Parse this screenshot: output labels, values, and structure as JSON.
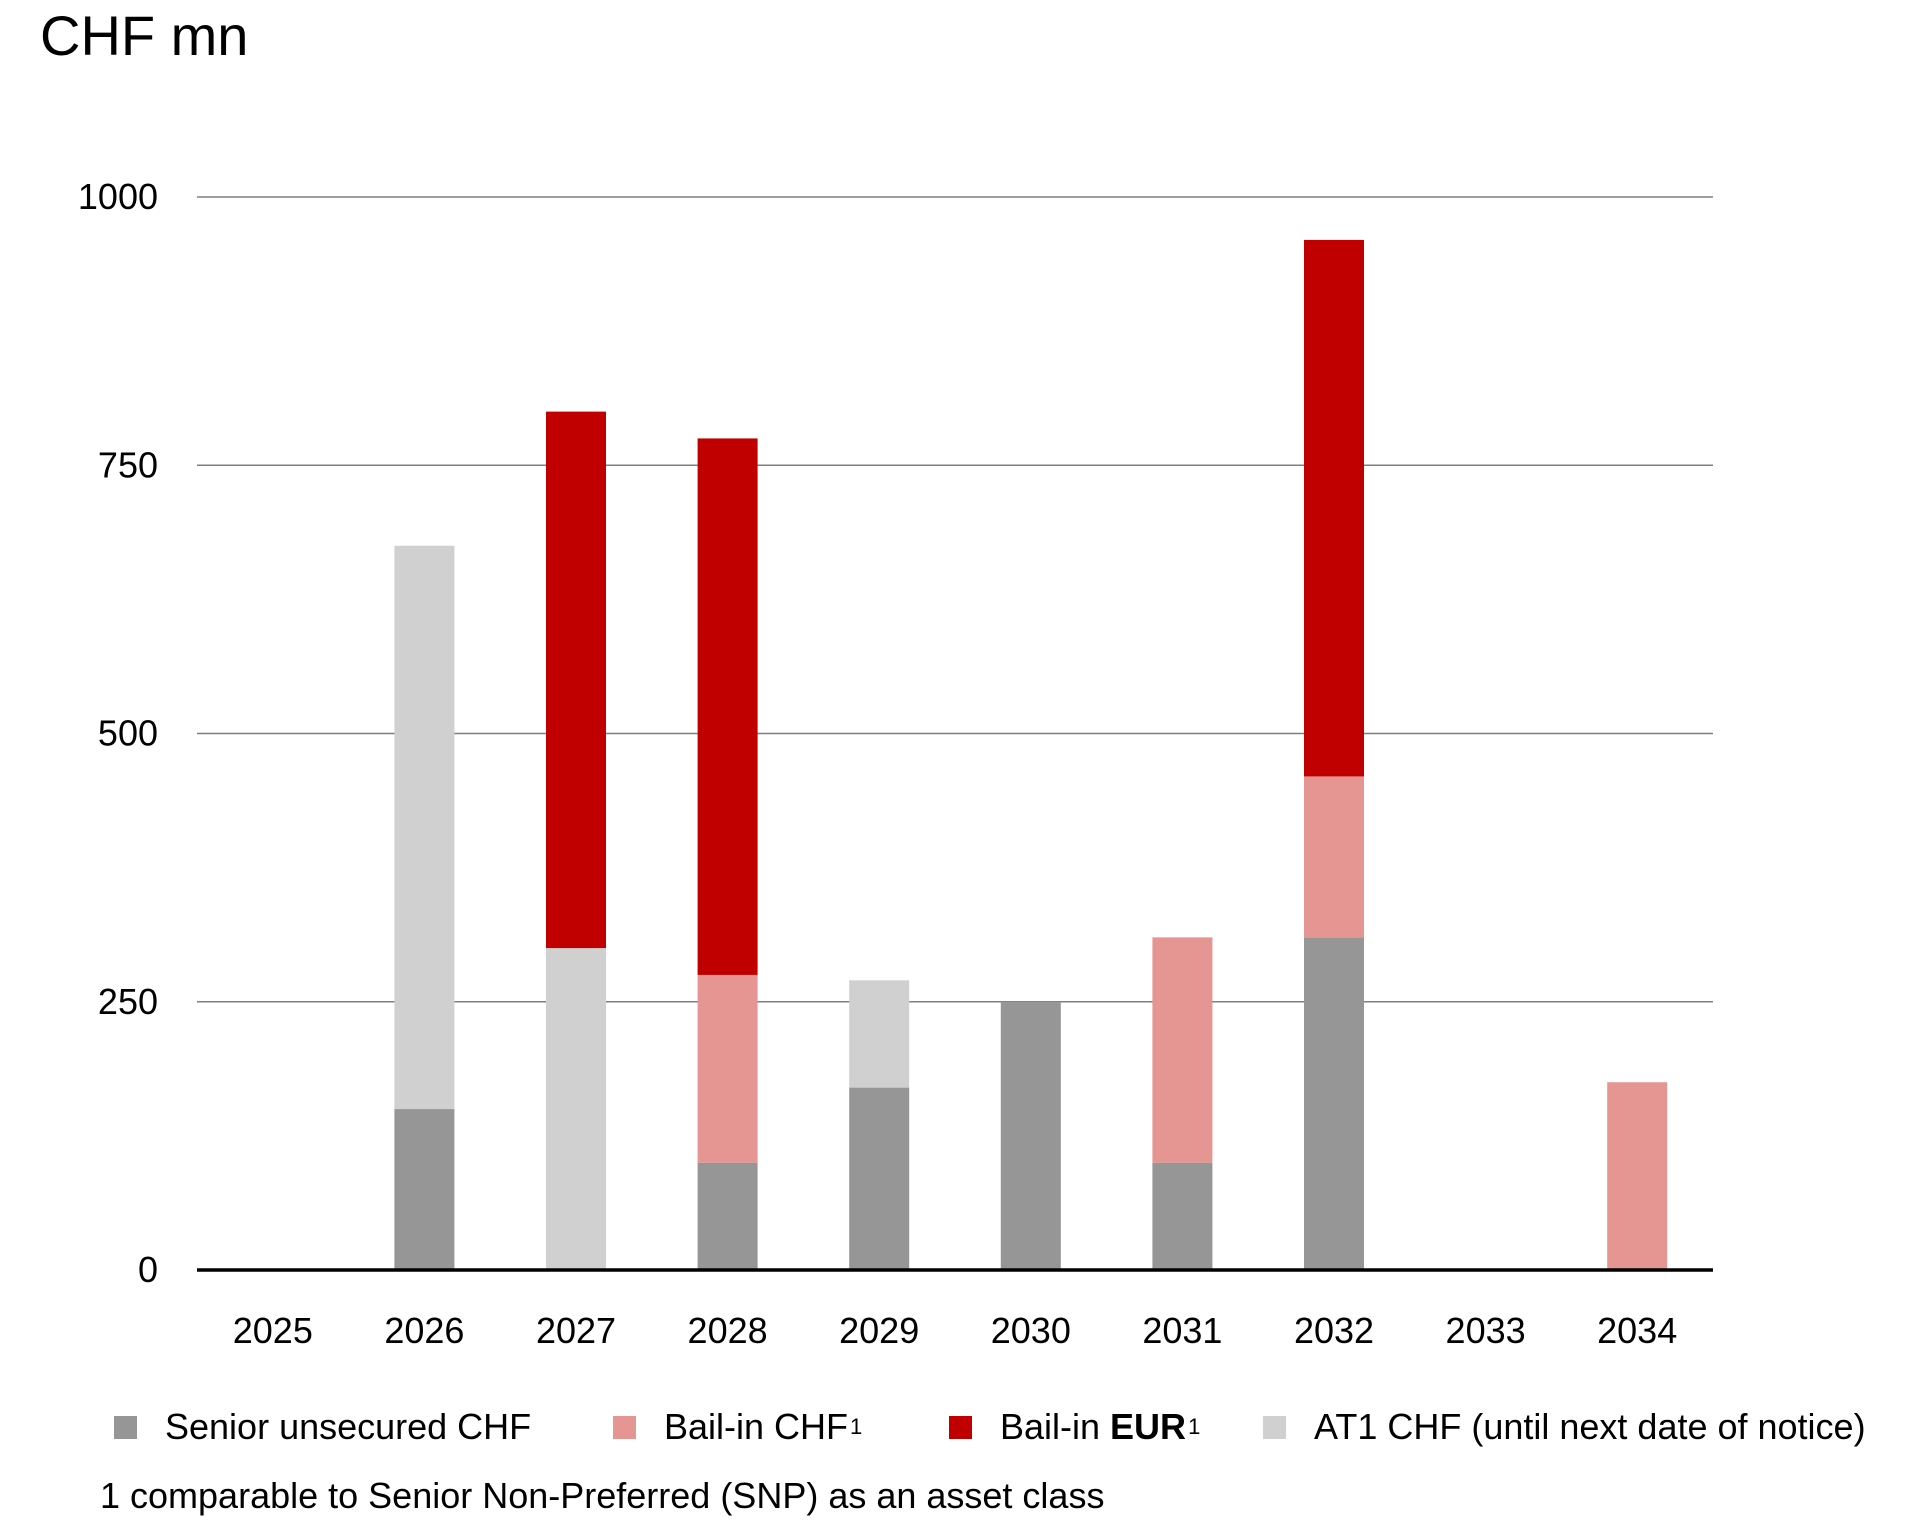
{
  "chart_data": {
    "type": "bar",
    "stacked": true,
    "title": "",
    "unit_label": "CHF mn",
    "xlabel": "",
    "ylabel": "",
    "ylim": [
      0,
      1000
    ],
    "yticks": [
      0,
      250,
      500,
      750,
      1000
    ],
    "grid": true,
    "legend_position": "bottom",
    "categories": [
      "2025",
      "2026",
      "2027",
      "2028",
      "2029",
      "2030",
      "2031",
      "2032",
      "2033",
      "2034"
    ],
    "series": [
      {
        "name": "Senior unsecured CHF",
        "color": "#969696",
        "values": [
          0,
          150,
          0,
          100,
          170,
          250,
          100,
          310,
          0,
          0
        ]
      },
      {
        "name": "Bail-in CHF",
        "color": "#e59692",
        "values": [
          0,
          0,
          0,
          175,
          0,
          0,
          210,
          150,
          0,
          175
        ]
      },
      {
        "name": "AT1 CHF (until next date of notice)",
        "color": "#d0d0d0",
        "values": [
          0,
          525,
          300,
          0,
          100,
          0,
          0,
          0,
          0,
          0
        ]
      },
      {
        "name": "Bail-in EUR",
        "color": "#c00000",
        "values": [
          0,
          0,
          500,
          500,
          0,
          0,
          0,
          500,
          0,
          0
        ]
      }
    ],
    "stack_order_bottom_to_top": [
      "Senior unsecured CHF",
      "Bail-in CHF",
      "AT1 CHF (until next date of notice)",
      "Bail-in EUR"
    ],
    "footnote": "1 comparable to Senior Non-Preferred (SNP) as an asset class"
  },
  "legend": {
    "items": [
      {
        "text": "Senior unsecured CHF",
        "bold": "",
        "sup": "",
        "color": "#969696"
      },
      {
        "text": "Bail-in CHF",
        "bold": "",
        "sup": "1",
        "color": "#e59692"
      },
      {
        "text": "Bail-in ",
        "bold": "EUR",
        "sup": "1",
        "color": "#c00000"
      },
      {
        "text": "AT1 CHF (until next date of notice)",
        "bold": "",
        "sup": "",
        "color": "#d0d0d0"
      }
    ]
  }
}
